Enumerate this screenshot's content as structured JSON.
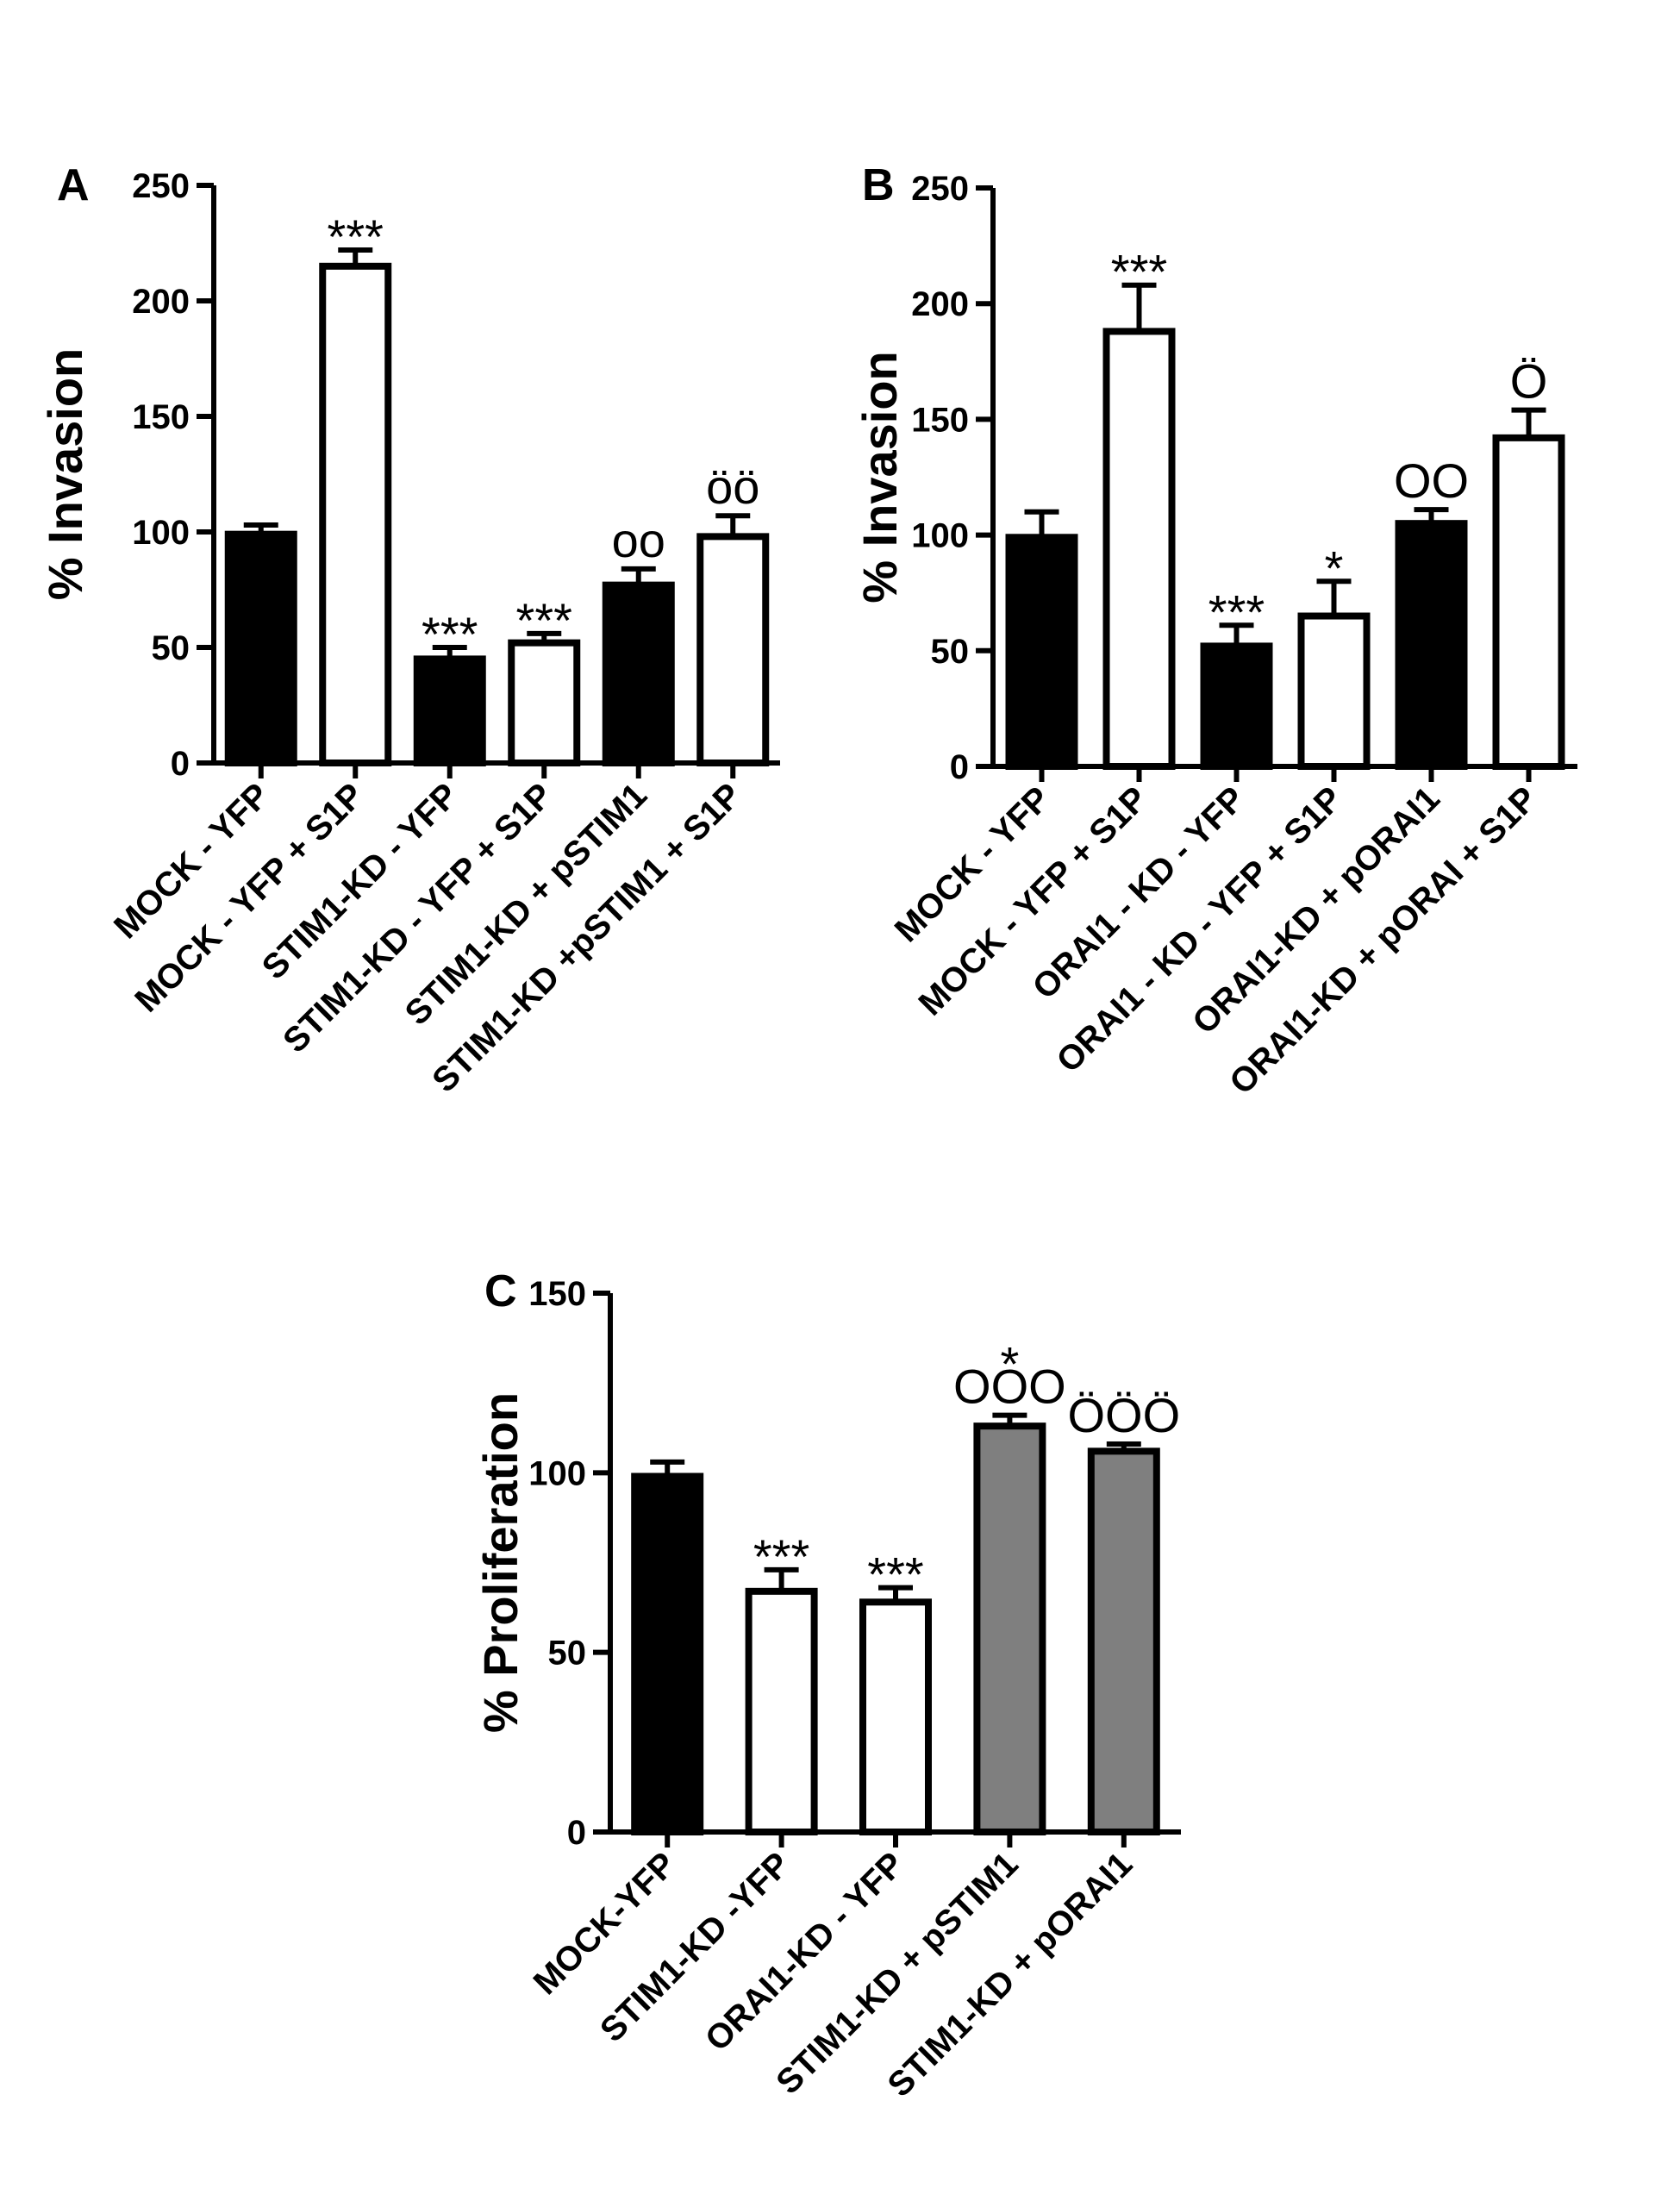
{
  "chart_data": [
    {
      "panel": "A",
      "type": "bar",
      "ylabel": "% Invasion",
      "ylim": [
        0,
        250
      ],
      "yticks": [
        "0",
        "50",
        "100",
        "150",
        "200",
        "250"
      ],
      "categories": [
        "MOCK - YFP",
        "MOCK - YFP + S1P",
        "STIM1-KD - YFP",
        "STIM1-KD - YFP + S1P",
        "STIM1-KD + pSTIM1",
        "STIM1-KD +pSTIM1 + S1P"
      ],
      "values": [
        99,
        215,
        45,
        52,
        77,
        98
      ],
      "errors": [
        4,
        7,
        5,
        4,
        7,
        9
      ],
      "fills": [
        "#000000",
        "#ffffff",
        "#000000",
        "#ffffff",
        "#000000",
        "#ffffff"
      ],
      "annotations": [
        "",
        "***",
        "***",
        "***",
        "oo",
        "öö"
      ]
    },
    {
      "panel": "B",
      "type": "bar",
      "ylabel": "% Invasion",
      "ylim": [
        0,
        250
      ],
      "yticks": [
        "0",
        "50",
        "100",
        "150",
        "200",
        "250"
      ],
      "categories": [
        "MOCK - YFP",
        "MOCK - YFP + S1P",
        "ORAI1 - KD - YFP",
        "ORAI1 - KD - YFP + S1P",
        "ORAI1-KD + pORAI1",
        "ORAI1-KD + pORAI + S1P"
      ],
      "values": [
        99,
        188,
        52,
        65,
        105,
        142
      ],
      "errors": [
        11,
        20,
        9,
        15,
        6,
        12
      ],
      "fills": [
        "#000000",
        "#ffffff",
        "#000000",
        "#ffffff",
        "#000000",
        "#ffffff"
      ],
      "annotations": [
        "",
        "***",
        "***",
        "*",
        "OO",
        "Ö"
      ]
    },
    {
      "panel": "C",
      "type": "bar",
      "ylabel": "% Proliferation",
      "ylim": [
        0,
        150
      ],
      "yticks": [
        "0",
        "50",
        "100",
        "150"
      ],
      "categories": [
        "MOCK-YFP",
        "STIM1-KD -YFP",
        "ORAI1-KD - YFP",
        "STIM1-KD + pSTIM1",
        "STIM1-KD + pORAI1"
      ],
      "values": [
        99,
        67,
        64,
        113,
        106
      ],
      "errors": [
        4,
        6,
        4,
        3,
        2
      ],
      "fills": [
        "#000000",
        "#ffffff",
        "#ffffff",
        "#7f7f7f",
        "#7f7f7f"
      ],
      "annotations": [
        "",
        "***",
        "***",
        "*\nOOO",
        "ÖÖÖ"
      ]
    }
  ]
}
